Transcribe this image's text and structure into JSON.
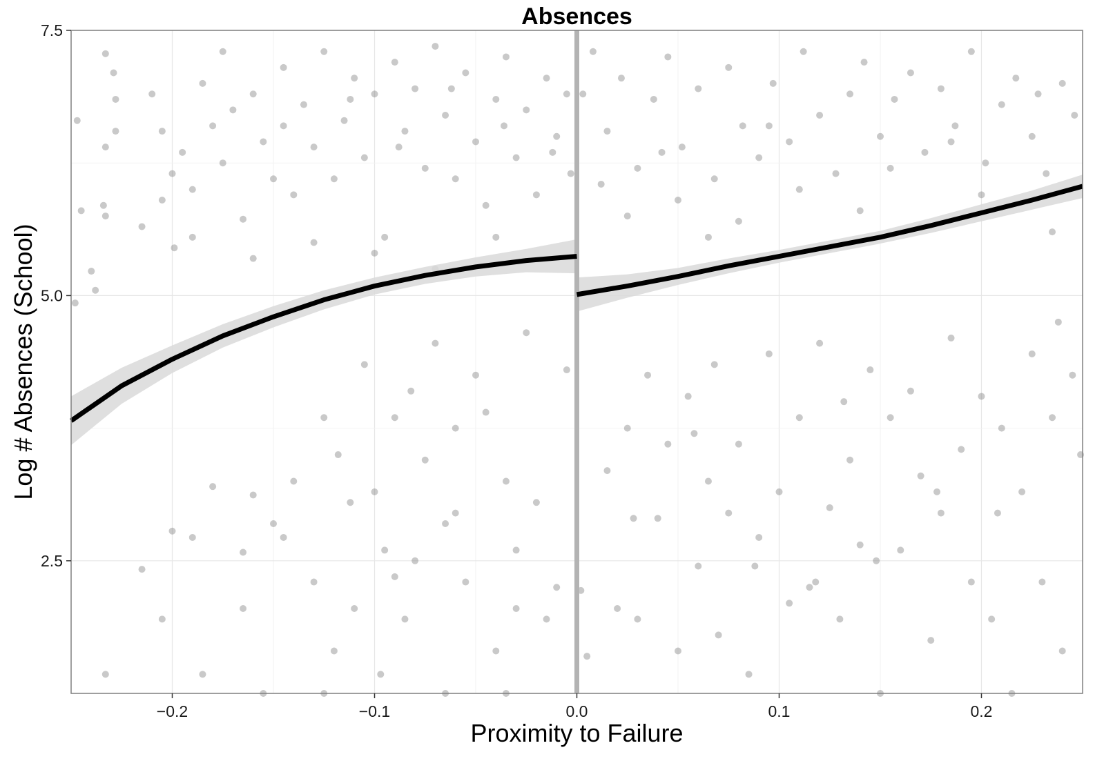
{
  "chart_data": {
    "type": "scatter",
    "title": "Absences",
    "xlabel": "Proximity to Failure",
    "ylabel": "Log # Absences (School)",
    "xlim": [
      -0.25,
      0.25
    ],
    "ylim": [
      1.25,
      7.5
    ],
    "x_ticks": [
      -0.2,
      -0.1,
      0.0,
      0.1,
      0.2
    ],
    "x_tick_labels": [
      "−0.2",
      "−0.1",
      "0.0",
      "0.1",
      "0.2"
    ],
    "y_ticks": [
      2.5,
      5.0,
      7.5
    ],
    "y_tick_labels": [
      "2.5",
      "5.0",
      "7.5"
    ],
    "grid": true,
    "cutoff_x": 0.0,
    "point_color": "#7f7f7f",
    "fit_color": "#000000",
    "ci_color": "#d9d9d9",
    "cutoff_color": "#b3b3b3",
    "series": [
      {
        "role": "fit-left",
        "x": [
          -0.25,
          -0.225,
          -0.2,
          -0.175,
          -0.15,
          -0.125,
          -0.1,
          -0.075,
          -0.05,
          -0.025,
          0.0
        ],
        "y": [
          3.82,
          4.15,
          4.4,
          4.62,
          4.8,
          4.96,
          5.09,
          5.19,
          5.27,
          5.33,
          5.37
        ],
        "ci_lower": [
          3.59,
          3.98,
          4.27,
          4.51,
          4.7,
          4.87,
          5.01,
          5.11,
          5.18,
          5.22,
          5.21
        ],
        "ci_upper": [
          4.05,
          4.32,
          4.53,
          4.73,
          4.9,
          5.05,
          5.17,
          5.27,
          5.36,
          5.44,
          5.53
        ]
      },
      {
        "role": "fit-right",
        "x": [
          0.0,
          0.025,
          0.05,
          0.075,
          0.1,
          0.125,
          0.15,
          0.175,
          0.2,
          0.225,
          0.25
        ],
        "y": [
          5.01,
          5.09,
          5.18,
          5.28,
          5.37,
          5.46,
          5.55,
          5.66,
          5.78,
          5.9,
          6.03
        ],
        "ci_lower": [
          4.85,
          4.98,
          5.1,
          5.21,
          5.31,
          5.4,
          5.49,
          5.59,
          5.7,
          5.81,
          5.92
        ],
        "ci_upper": [
          5.17,
          5.2,
          5.26,
          5.35,
          5.43,
          5.52,
          5.61,
          5.73,
          5.86,
          5.99,
          6.14
        ]
      }
    ],
    "points": [
      [
        -0.233,
        7.28
      ],
      [
        -0.229,
        7.1
      ],
      [
        -0.228,
        6.85
      ],
      [
        -0.228,
        6.55
      ],
      [
        -0.233,
        6.4
      ],
      [
        -0.234,
        5.85
      ],
      [
        -0.233,
        5.75
      ],
      [
        -0.24,
        5.23
      ],
      [
        -0.238,
        5.05
      ],
      [
        -0.247,
        6.65
      ],
      [
        -0.245,
        5.8
      ],
      [
        -0.21,
        6.9
      ],
      [
        -0.205,
        6.55
      ],
      [
        -0.2,
        6.15
      ],
      [
        -0.199,
        5.45
      ],
      [
        -0.205,
        5.9
      ],
      [
        -0.195,
        6.35
      ],
      [
        -0.19,
        6.0
      ],
      [
        -0.185,
        7.0
      ],
      [
        -0.18,
        6.6
      ],
      [
        -0.175,
        6.25
      ],
      [
        -0.17,
        6.75
      ],
      [
        -0.165,
        5.72
      ],
      [
        -0.16,
        6.9
      ],
      [
        -0.155,
        6.45
      ],
      [
        -0.15,
        6.1
      ],
      [
        -0.145,
        7.15
      ],
      [
        -0.14,
        5.95
      ],
      [
        -0.135,
        6.8
      ],
      [
        -0.13,
        6.4
      ],
      [
        -0.125,
        7.3
      ],
      [
        -0.12,
        6.1
      ],
      [
        -0.115,
        6.65
      ],
      [
        -0.11,
        7.05
      ],
      [
        -0.105,
        6.3
      ],
      [
        -0.1,
        6.9
      ],
      [
        -0.095,
        5.55
      ],
      [
        -0.09,
        7.2
      ],
      [
        -0.085,
        6.55
      ],
      [
        -0.08,
        6.95
      ],
      [
        -0.075,
        6.2
      ],
      [
        -0.07,
        7.35
      ],
      [
        -0.065,
        6.7
      ],
      [
        -0.06,
        6.1
      ],
      [
        -0.055,
        7.1
      ],
      [
        -0.05,
        6.45
      ],
      [
        -0.045,
        5.85
      ],
      [
        -0.04,
        6.85
      ],
      [
        -0.035,
        7.25
      ],
      [
        -0.03,
        6.3
      ],
      [
        -0.025,
        6.75
      ],
      [
        -0.02,
        5.95
      ],
      [
        -0.015,
        7.05
      ],
      [
        -0.01,
        6.5
      ],
      [
        -0.005,
        6.9
      ],
      [
        -0.003,
        6.15
      ],
      [
        -0.19,
        5.55
      ],
      [
        -0.16,
        5.35
      ],
      [
        -0.13,
        5.5
      ],
      [
        -0.1,
        5.4
      ],
      [
        -0.07,
        5.25
      ],
      [
        -0.04,
        5.55
      ],
      [
        -0.215,
        5.65
      ],
      [
        -0.175,
        7.3
      ],
      [
        -0.145,
        6.6
      ],
      [
        -0.112,
        6.85
      ],
      [
        -0.088,
        6.4
      ],
      [
        -0.062,
        6.95
      ],
      [
        -0.036,
        6.6
      ],
      [
        -0.012,
        6.35
      ],
      [
        0.003,
        6.9
      ],
      [
        0.008,
        7.3
      ],
      [
        0.015,
        6.55
      ],
      [
        0.022,
        7.05
      ],
      [
        0.03,
        6.2
      ],
      [
        0.038,
        6.85
      ],
      [
        0.045,
        7.25
      ],
      [
        0.052,
        6.4
      ],
      [
        0.06,
        6.95
      ],
      [
        0.068,
        6.1
      ],
      [
        0.075,
        7.15
      ],
      [
        0.082,
        6.6
      ],
      [
        0.09,
        6.3
      ],
      [
        0.097,
        7.0
      ],
      [
        0.105,
        6.45
      ],
      [
        0.112,
        7.3
      ],
      [
        0.12,
        6.7
      ],
      [
        0.128,
        6.15
      ],
      [
        0.135,
        6.9
      ],
      [
        0.142,
        7.2
      ],
      [
        0.15,
        6.5
      ],
      [
        0.157,
        6.85
      ],
      [
        0.165,
        7.1
      ],
      [
        0.172,
        6.35
      ],
      [
        0.18,
        6.95
      ],
      [
        0.187,
        6.6
      ],
      [
        0.195,
        7.3
      ],
      [
        0.202,
        6.25
      ],
      [
        0.21,
        6.8
      ],
      [
        0.217,
        7.05
      ],
      [
        0.225,
        6.5
      ],
      [
        0.232,
        6.15
      ],
      [
        0.24,
        7.0
      ],
      [
        0.246,
        6.7
      ],
      [
        0.05,
        5.9
      ],
      [
        0.08,
        5.7
      ],
      [
        0.11,
        6.0
      ],
      [
        0.14,
        5.8
      ],
      [
        0.17,
        5.65
      ],
      [
        0.2,
        5.95
      ],
      [
        0.025,
        5.75
      ],
      [
        0.065,
        5.55
      ],
      [
        0.125,
        5.45
      ],
      [
        0.235,
        5.6
      ],
      [
        0.012,
        6.05
      ],
      [
        0.042,
        6.35
      ],
      [
        0.095,
        6.6
      ],
      [
        0.155,
        6.2
      ],
      [
        0.185,
        6.45
      ],
      [
        0.228,
        6.9
      ],
      [
        -0.248,
        4.93
      ],
      [
        -0.2,
        2.78
      ],
      [
        -0.215,
        2.42
      ],
      [
        -0.233,
        1.43
      ],
      [
        -0.205,
        1.95
      ],
      [
        -0.19,
        2.72
      ],
      [
        -0.18,
        3.2
      ],
      [
        -0.165,
        2.58
      ],
      [
        -0.16,
        3.12
      ],
      [
        -0.15,
        2.85
      ],
      [
        -0.14,
        3.25
      ],
      [
        -0.13,
        2.3
      ],
      [
        -0.125,
        3.85
      ],
      [
        -0.118,
        3.5
      ],
      [
        -0.11,
        2.05
      ],
      [
        -0.105,
        4.35
      ],
      [
        -0.1,
        3.15
      ],
      [
        -0.095,
        2.6
      ],
      [
        -0.09,
        3.85
      ],
      [
        -0.085,
        1.95
      ],
      [
        -0.08,
        2.5
      ],
      [
        -0.075,
        3.45
      ],
      [
        -0.07,
        4.55
      ],
      [
        -0.065,
        2.85
      ],
      [
        -0.06,
        3.75
      ],
      [
        -0.055,
        2.3
      ],
      [
        -0.05,
        4.25
      ],
      [
        -0.045,
        3.9
      ],
      [
        -0.04,
        1.65
      ],
      [
        -0.035,
        3.25
      ],
      [
        -0.03,
        2.6
      ],
      [
        -0.025,
        4.65
      ],
      [
        -0.02,
        3.05
      ],
      [
        -0.015,
        1.95
      ],
      [
        -0.01,
        2.25
      ],
      [
        -0.005,
        4.3
      ],
      [
        -0.185,
        1.43
      ],
      [
        -0.155,
        1.25
      ],
      [
        -0.125,
        1.25
      ],
      [
        -0.097,
        1.43
      ],
      [
        -0.065,
        1.25
      ],
      [
        -0.035,
        1.25
      ],
      [
        -0.165,
        2.05
      ],
      [
        -0.145,
        2.72
      ],
      [
        -0.12,
        1.65
      ],
      [
        -0.09,
        2.35
      ],
      [
        -0.06,
        2.95
      ],
      [
        -0.03,
        2.05
      ],
      [
        -0.112,
        3.05
      ],
      [
        -0.082,
        4.1
      ],
      [
        0.002,
        2.22
      ],
      [
        0.005,
        1.6
      ],
      [
        0.015,
        3.35
      ],
      [
        0.02,
        2.05
      ],
      [
        0.025,
        3.75
      ],
      [
        0.03,
        1.95
      ],
      [
        0.035,
        4.25
      ],
      [
        0.04,
        2.9
      ],
      [
        0.045,
        3.6
      ],
      [
        0.05,
        1.65
      ],
      [
        0.055,
        4.05
      ],
      [
        0.06,
        2.45
      ],
      [
        0.065,
        3.25
      ],
      [
        0.07,
        1.8
      ],
      [
        0.075,
        2.95
      ],
      [
        0.08,
        3.6
      ],
      [
        0.085,
        1.43
      ],
      [
        0.09,
        2.72
      ],
      [
        0.095,
        4.45
      ],
      [
        0.1,
        3.15
      ],
      [
        0.105,
        2.1
      ],
      [
        0.11,
        3.85
      ],
      [
        0.115,
        2.25
      ],
      [
        0.12,
        4.55
      ],
      [
        0.125,
        3.0
      ],
      [
        0.13,
        1.95
      ],
      [
        0.135,
        3.45
      ],
      [
        0.14,
        2.65
      ],
      [
        0.145,
        4.3
      ],
      [
        0.15,
        1.25
      ],
      [
        0.155,
        3.85
      ],
      [
        0.16,
        2.6
      ],
      [
        0.165,
        4.1
      ],
      [
        0.17,
        3.3
      ],
      [
        0.175,
        1.75
      ],
      [
        0.18,
        2.95
      ],
      [
        0.185,
        4.6
      ],
      [
        0.19,
        3.55
      ],
      [
        0.195,
        2.3
      ],
      [
        0.2,
        4.05
      ],
      [
        0.205,
        1.95
      ],
      [
        0.21,
        3.75
      ],
      [
        0.215,
        1.25
      ],
      [
        0.22,
        3.15
      ],
      [
        0.225,
        4.45
      ],
      [
        0.23,
        2.3
      ],
      [
        0.235,
        3.85
      ],
      [
        0.24,
        1.65
      ],
      [
        0.245,
        4.25
      ],
      [
        0.249,
        3.5
      ],
      [
        0.028,
        2.9
      ],
      [
        0.058,
        3.7
      ],
      [
        0.088,
        2.45
      ],
      [
        0.118,
        2.3
      ],
      [
        0.148,
        2.5
      ],
      [
        0.178,
        3.15
      ],
      [
        0.208,
        2.95
      ],
      [
        0.238,
        4.75
      ],
      [
        0.068,
        4.35
      ],
      [
        0.132,
        4.0
      ]
    ]
  }
}
